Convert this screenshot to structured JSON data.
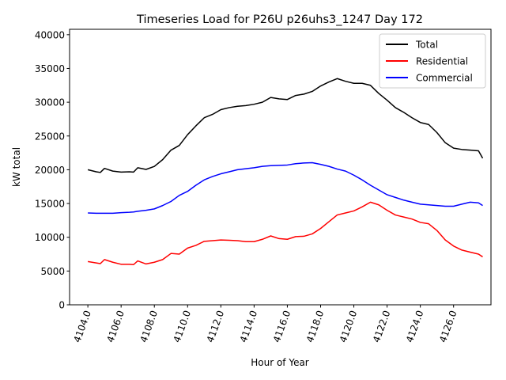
{
  "chart_data": {
    "type": "line",
    "title": "Timeseries Load for P26U p26uhs3_1247  Day 172",
    "xlabel": "Hour of Year",
    "ylabel": "kW total",
    "xlim": [
      4102.9,
      4128.25
    ],
    "ylim": [
      0,
      40800
    ],
    "xticks": [
      4104,
      4106,
      4108,
      4110,
      4112,
      4114,
      4116,
      4118,
      4120,
      4122,
      4124,
      4126
    ],
    "xtick_labels": [
      "4104.0",
      "4106.0",
      "4108.0",
      "4110.0",
      "4112.0",
      "4114.0",
      "4116.0",
      "4118.0",
      "4120.0",
      "4122.0",
      "4124.0",
      "4126.0"
    ],
    "yticks": [
      0,
      5000,
      10000,
      15000,
      20000,
      25000,
      30000,
      35000,
      40000
    ],
    "ytick_labels": [
      "0",
      "5000",
      "10000",
      "15000",
      "20000",
      "25000",
      "30000",
      "35000",
      "40000"
    ],
    "legend_position": "top-right",
    "grid": false,
    "x": [
      4104.0,
      4104.5,
      4104.75,
      4105.0,
      4105.5,
      4106.0,
      4106.5,
      4106.75,
      4107.0,
      4107.5,
      4108.0,
      4108.5,
      4109.0,
      4109.5,
      4110.0,
      4110.5,
      4111.0,
      4111.5,
      4112.0,
      4112.5,
      4113.0,
      4113.5,
      4114.0,
      4114.5,
      4115.0,
      4115.5,
      4116.0,
      4116.5,
      4117.0,
      4117.5,
      4118.0,
      4118.5,
      4119.0,
      4119.5,
      4120.0,
      4120.5,
      4121.0,
      4121.5,
      4122.0,
      4122.5,
      4123.0,
      4123.5,
      4124.0,
      4124.5,
      4125.0,
      4125.5,
      4126.0,
      4126.5,
      4127.0,
      4127.5,
      4127.75
    ],
    "series": [
      {
        "name": "Total",
        "color": "#000000",
        "values": [
          20000,
          19700,
          19600,
          20200,
          19800,
          19650,
          19700,
          19650,
          20300,
          20050,
          20500,
          21500,
          22900,
          23600,
          25200,
          26500,
          27700,
          28200,
          28900,
          29200,
          29400,
          29500,
          29700,
          30000,
          30700,
          30500,
          30400,
          31000,
          31200,
          31600,
          32400,
          33000,
          33500,
          33100,
          32800,
          32800,
          32500,
          31300,
          30300,
          29200,
          28500,
          27700,
          27000,
          26700,
          25500,
          24000,
          23200,
          23000,
          22900,
          22800,
          21700
        ]
      },
      {
        "name": "Residential",
        "color": "#ff0000",
        "values": [
          6400,
          6200,
          6100,
          6700,
          6300,
          6000,
          6000,
          5950,
          6500,
          6050,
          6300,
          6700,
          7600,
          7500,
          8400,
          8800,
          9400,
          9500,
          9600,
          9550,
          9500,
          9350,
          9350,
          9700,
          10200,
          9800,
          9700,
          10100,
          10150,
          10500,
          11300,
          12300,
          13300,
          13600,
          13900,
          14500,
          15200,
          14800,
          14000,
          13300,
          13000,
          12700,
          12200,
          12000,
          11000,
          9600,
          8700,
          8100,
          7800,
          7500,
          7100
        ]
      },
      {
        "name": "Commercial",
        "color": "#0000ff",
        "values": [
          13600,
          13550,
          13550,
          13550,
          13550,
          13650,
          13700,
          13750,
          13850,
          14000,
          14200,
          14700,
          15300,
          16200,
          16800,
          17700,
          18500,
          19000,
          19400,
          19700,
          20000,
          20150,
          20300,
          20500,
          20600,
          20650,
          20700,
          20900,
          21000,
          21050,
          20800,
          20500,
          20100,
          19800,
          19200,
          18500,
          17700,
          17000,
          16300,
          15900,
          15500,
          15200,
          14900,
          14800,
          14700,
          14600,
          14600,
          14900,
          15200,
          15100,
          14700
        ]
      }
    ]
  }
}
